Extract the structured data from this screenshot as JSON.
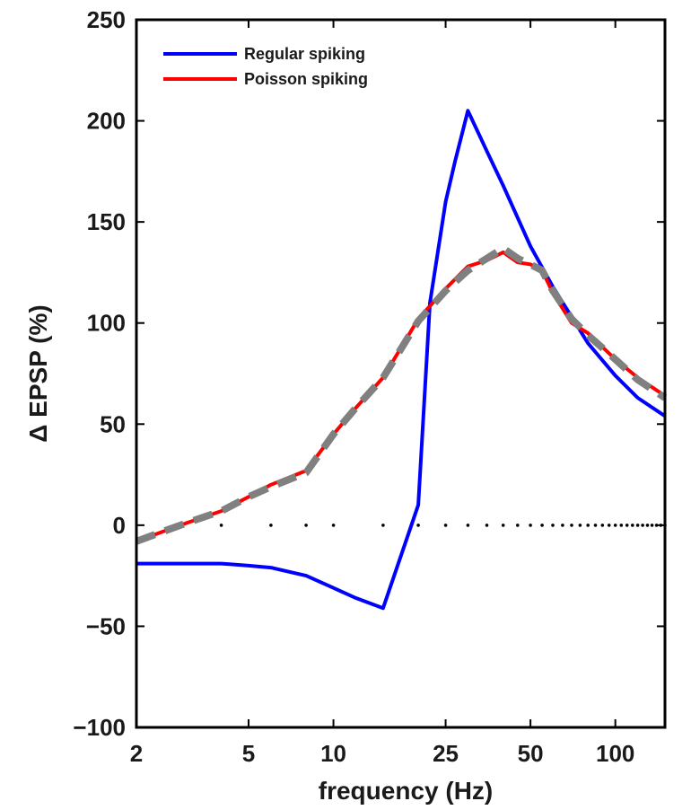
{
  "chart_data": {
    "type": "line",
    "xlabel": "frequency (Hz)",
    "ylabel": "Δ EPSP (%)",
    "x_scale": "log",
    "xlim": [
      2,
      150
    ],
    "ylim": [
      -100,
      250
    ],
    "x_ticks": [
      2,
      5,
      10,
      25,
      50,
      100
    ],
    "x_tick_labels": [
      "2",
      "5",
      "10",
      "25",
      "50",
      "100"
    ],
    "y_ticks": [
      -100,
      -50,
      0,
      50,
      100,
      150,
      200,
      250
    ],
    "y_tick_labels": [
      "−100",
      "−50",
      "0",
      "50",
      "100",
      "150",
      "200",
      "250"
    ],
    "grid": false,
    "legend": {
      "position": "top-left",
      "entries": [
        "Regular spiking",
        "Poisson spiking"
      ]
    },
    "series": [
      {
        "name": "Regular spiking",
        "color": "#0000ff",
        "style": "solid",
        "x": [
          2,
          3,
          4,
          5,
          6,
          8,
          10,
          12,
          15,
          20,
          22,
          25,
          27,
          30,
          35,
          40,
          50,
          60,
          80,
          100,
          120,
          150
        ],
        "y": [
          -19,
          -19,
          -19,
          -20,
          -21,
          -25,
          -31,
          -36,
          -41,
          10,
          110,
          160,
          180,
          205,
          185,
          168,
          138,
          118,
          90,
          74,
          63,
          54
        ]
      },
      {
        "name": "Poisson spiking",
        "color": "#ff0000",
        "style": "solid",
        "x": [
          2,
          2.5,
          3,
          4,
          5,
          6,
          8,
          10,
          12,
          15,
          20,
          25,
          30,
          35,
          40,
          45,
          50,
          55,
          60,
          70,
          80,
          100,
          120,
          150
        ],
        "y": [
          -8,
          -3,
          1,
          7,
          14,
          20,
          27,
          45,
          58,
          73,
          102,
          117,
          128,
          131,
          135,
          130,
          129,
          126,
          115,
          100,
          95,
          82,
          73,
          64
        ]
      },
      {
        "color": "#808080",
        "style": "dashed",
        "x": [
          2,
          2.5,
          3,
          4,
          5,
          6,
          8,
          10,
          12,
          15,
          20,
          25,
          30,
          35,
          40,
          45,
          50,
          55,
          60,
          70,
          80,
          100,
          120,
          150
        ],
        "y": [
          -8,
          -3,
          1,
          7,
          14,
          19,
          26,
          45,
          58,
          73,
          101,
          116,
          126,
          132,
          137,
          132,
          129,
          126,
          116,
          102,
          94,
          82,
          72,
          63
        ]
      }
    ],
    "dots_at_zero": {
      "color": "#000000",
      "x": [
        4,
        6,
        8,
        10,
        15,
        20,
        25,
        30,
        35,
        40,
        45,
        50,
        55,
        60,
        65,
        70,
        75,
        80,
        85,
        90,
        95,
        100,
        105,
        110,
        115,
        120,
        125,
        130,
        135,
        140,
        145,
        150
      ]
    }
  }
}
